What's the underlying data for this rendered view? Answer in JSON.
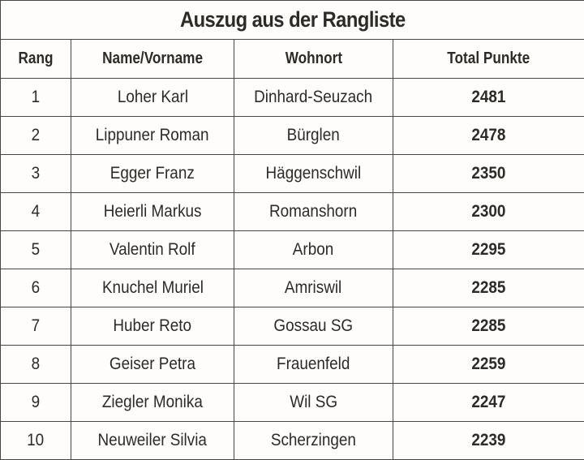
{
  "title": "Auszug aus der Rangliste",
  "columns": [
    "Rang",
    "Name/Vorname",
    "Wohnort",
    "Total Punkte"
  ],
  "rows": [
    {
      "rang": "1",
      "name": "Loher Karl",
      "wohnort": "Dinhard-Seuzach",
      "punkte": "2481"
    },
    {
      "rang": "2",
      "name": "Lippuner Roman",
      "wohnort": "Bürglen",
      "punkte": "2478"
    },
    {
      "rang": "3",
      "name": "Egger Franz",
      "wohnort": "Häggenschwil",
      "punkte": "2350"
    },
    {
      "rang": "4",
      "name": "Heierli Markus",
      "wohnort": "Romanshorn",
      "punkte": "2300"
    },
    {
      "rang": "5",
      "name": "Valentin Rolf",
      "wohnort": "Arbon",
      "punkte": "2295"
    },
    {
      "rang": "6",
      "name": "Knuchel Muriel",
      "wohnort": "Amriswil",
      "punkte": "2285"
    },
    {
      "rang": "7",
      "name": "Huber Reto",
      "wohnort": "Gossau SG",
      "punkte": "2285"
    },
    {
      "rang": "8",
      "name": "Geiser Petra",
      "wohnort": "Frauenfeld",
      "punkte": "2259"
    },
    {
      "rang": "9",
      "name": "Ziegler Monika",
      "wohnort": "Wil SG",
      "punkte": "2247"
    },
    {
      "rang": "10",
      "name": "Neuweiler Silvia",
      "wohnort": "Scherzingen",
      "punkte": "2239"
    }
  ]
}
